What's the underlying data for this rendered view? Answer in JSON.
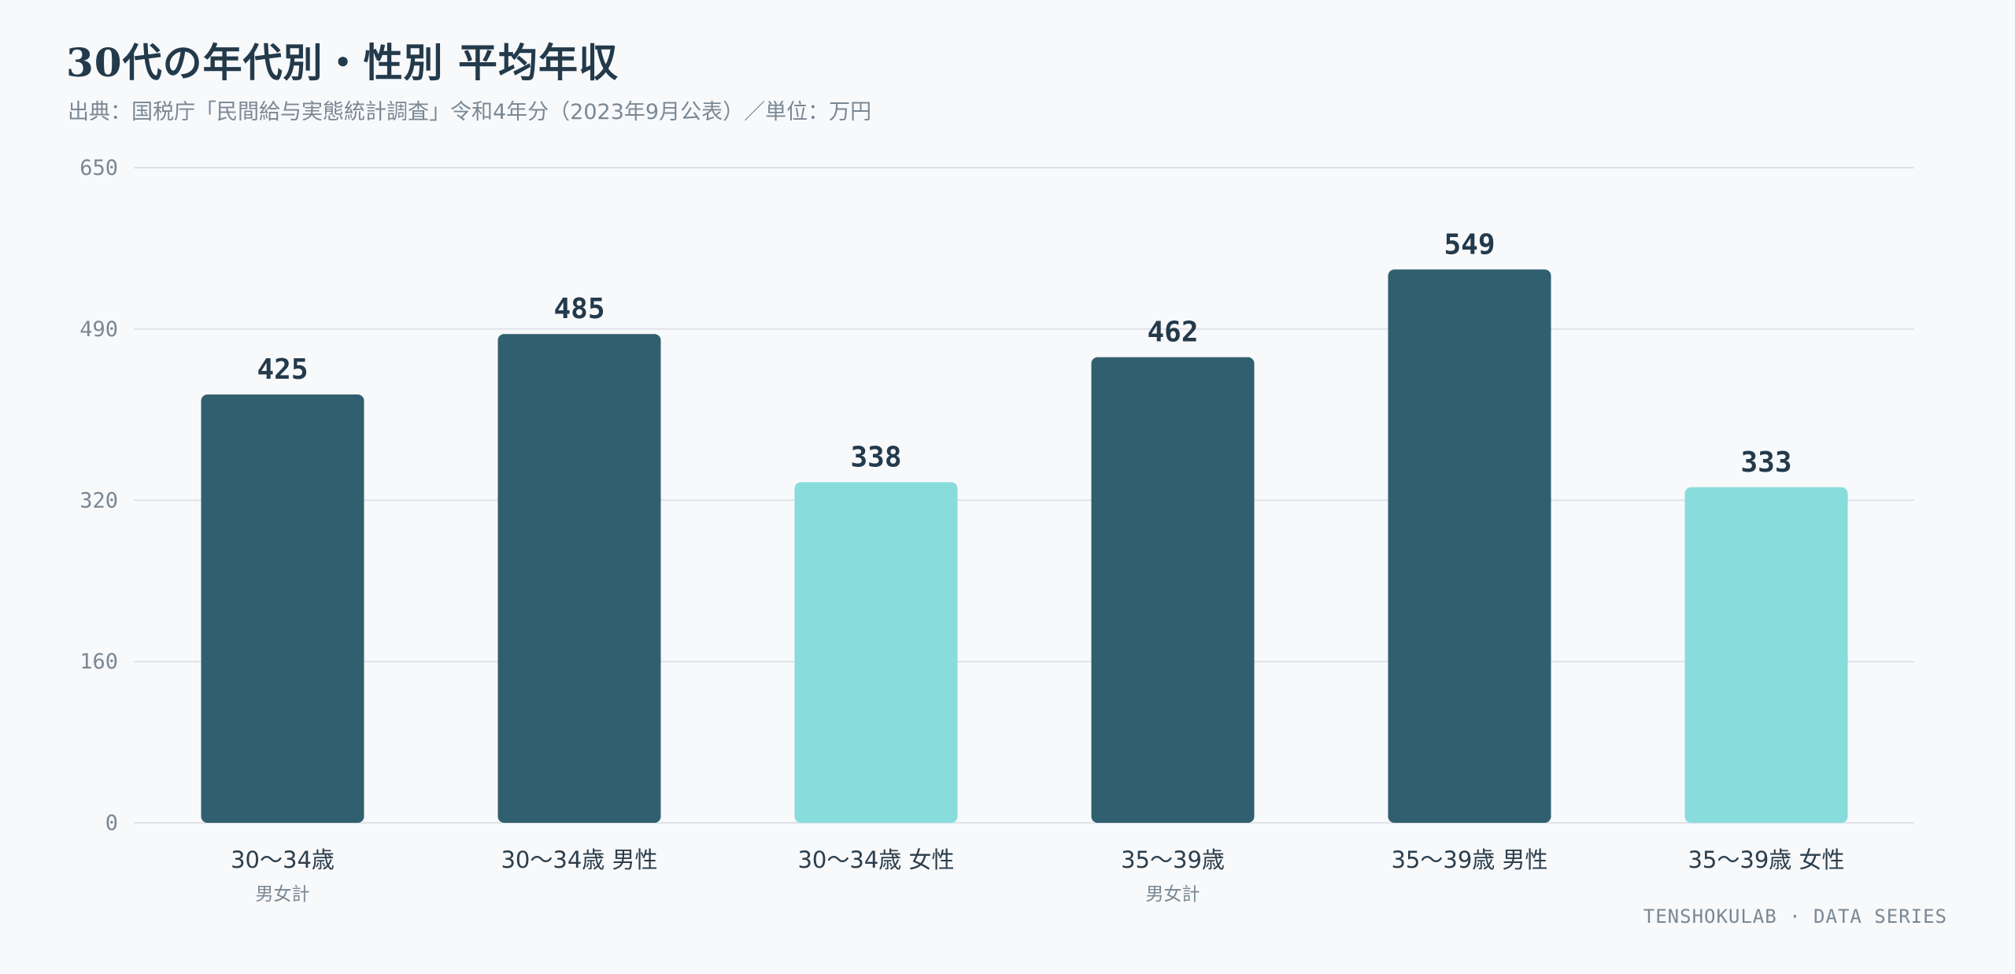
{
  "header": {
    "title": "30代の年代別・性別 平均年収",
    "subtitle": "出典：国税庁「民間給与実態統計調査」令和4年分（2023年9月公表）／単位：万円"
  },
  "footer": {
    "brand": "TENSHOKULAB · DATA SERIES"
  },
  "colors": {
    "background": "#f8f9fb",
    "dark_bar": "#30606f",
    "light_bar": "#88dcdc",
    "grid": "#dfe3e8",
    "text_dark": "#233a4b",
    "text_muted": "#7a8893"
  },
  "chart_data": {
    "type": "bar",
    "title": "30代の年代別・性別 平均年収",
    "subtitle": "出典：国税庁「民間給与実態統計調査」令和4年分（2023年9月公表）／単位：万円",
    "xlabel": "",
    "ylabel": "",
    "ylim": [
      0,
      650
    ],
    "yticks": [
      0,
      160,
      320,
      490,
      650
    ],
    "grid": true,
    "categories": [
      "30〜34歳",
      "30〜34歳 男性",
      "30〜34歳 女性",
      "35〜39歳",
      "35〜39歳 男性",
      "35〜39歳 女性"
    ],
    "category_sublabels": [
      "男女計",
      "",
      "",
      "男女計",
      "",
      ""
    ],
    "values": [
      425,
      485,
      338,
      462,
      549,
      333
    ],
    "bar_colors": [
      "#30606f",
      "#30606f",
      "#88dcdc",
      "#30606f",
      "#30606f",
      "#88dcdc"
    ]
  }
}
